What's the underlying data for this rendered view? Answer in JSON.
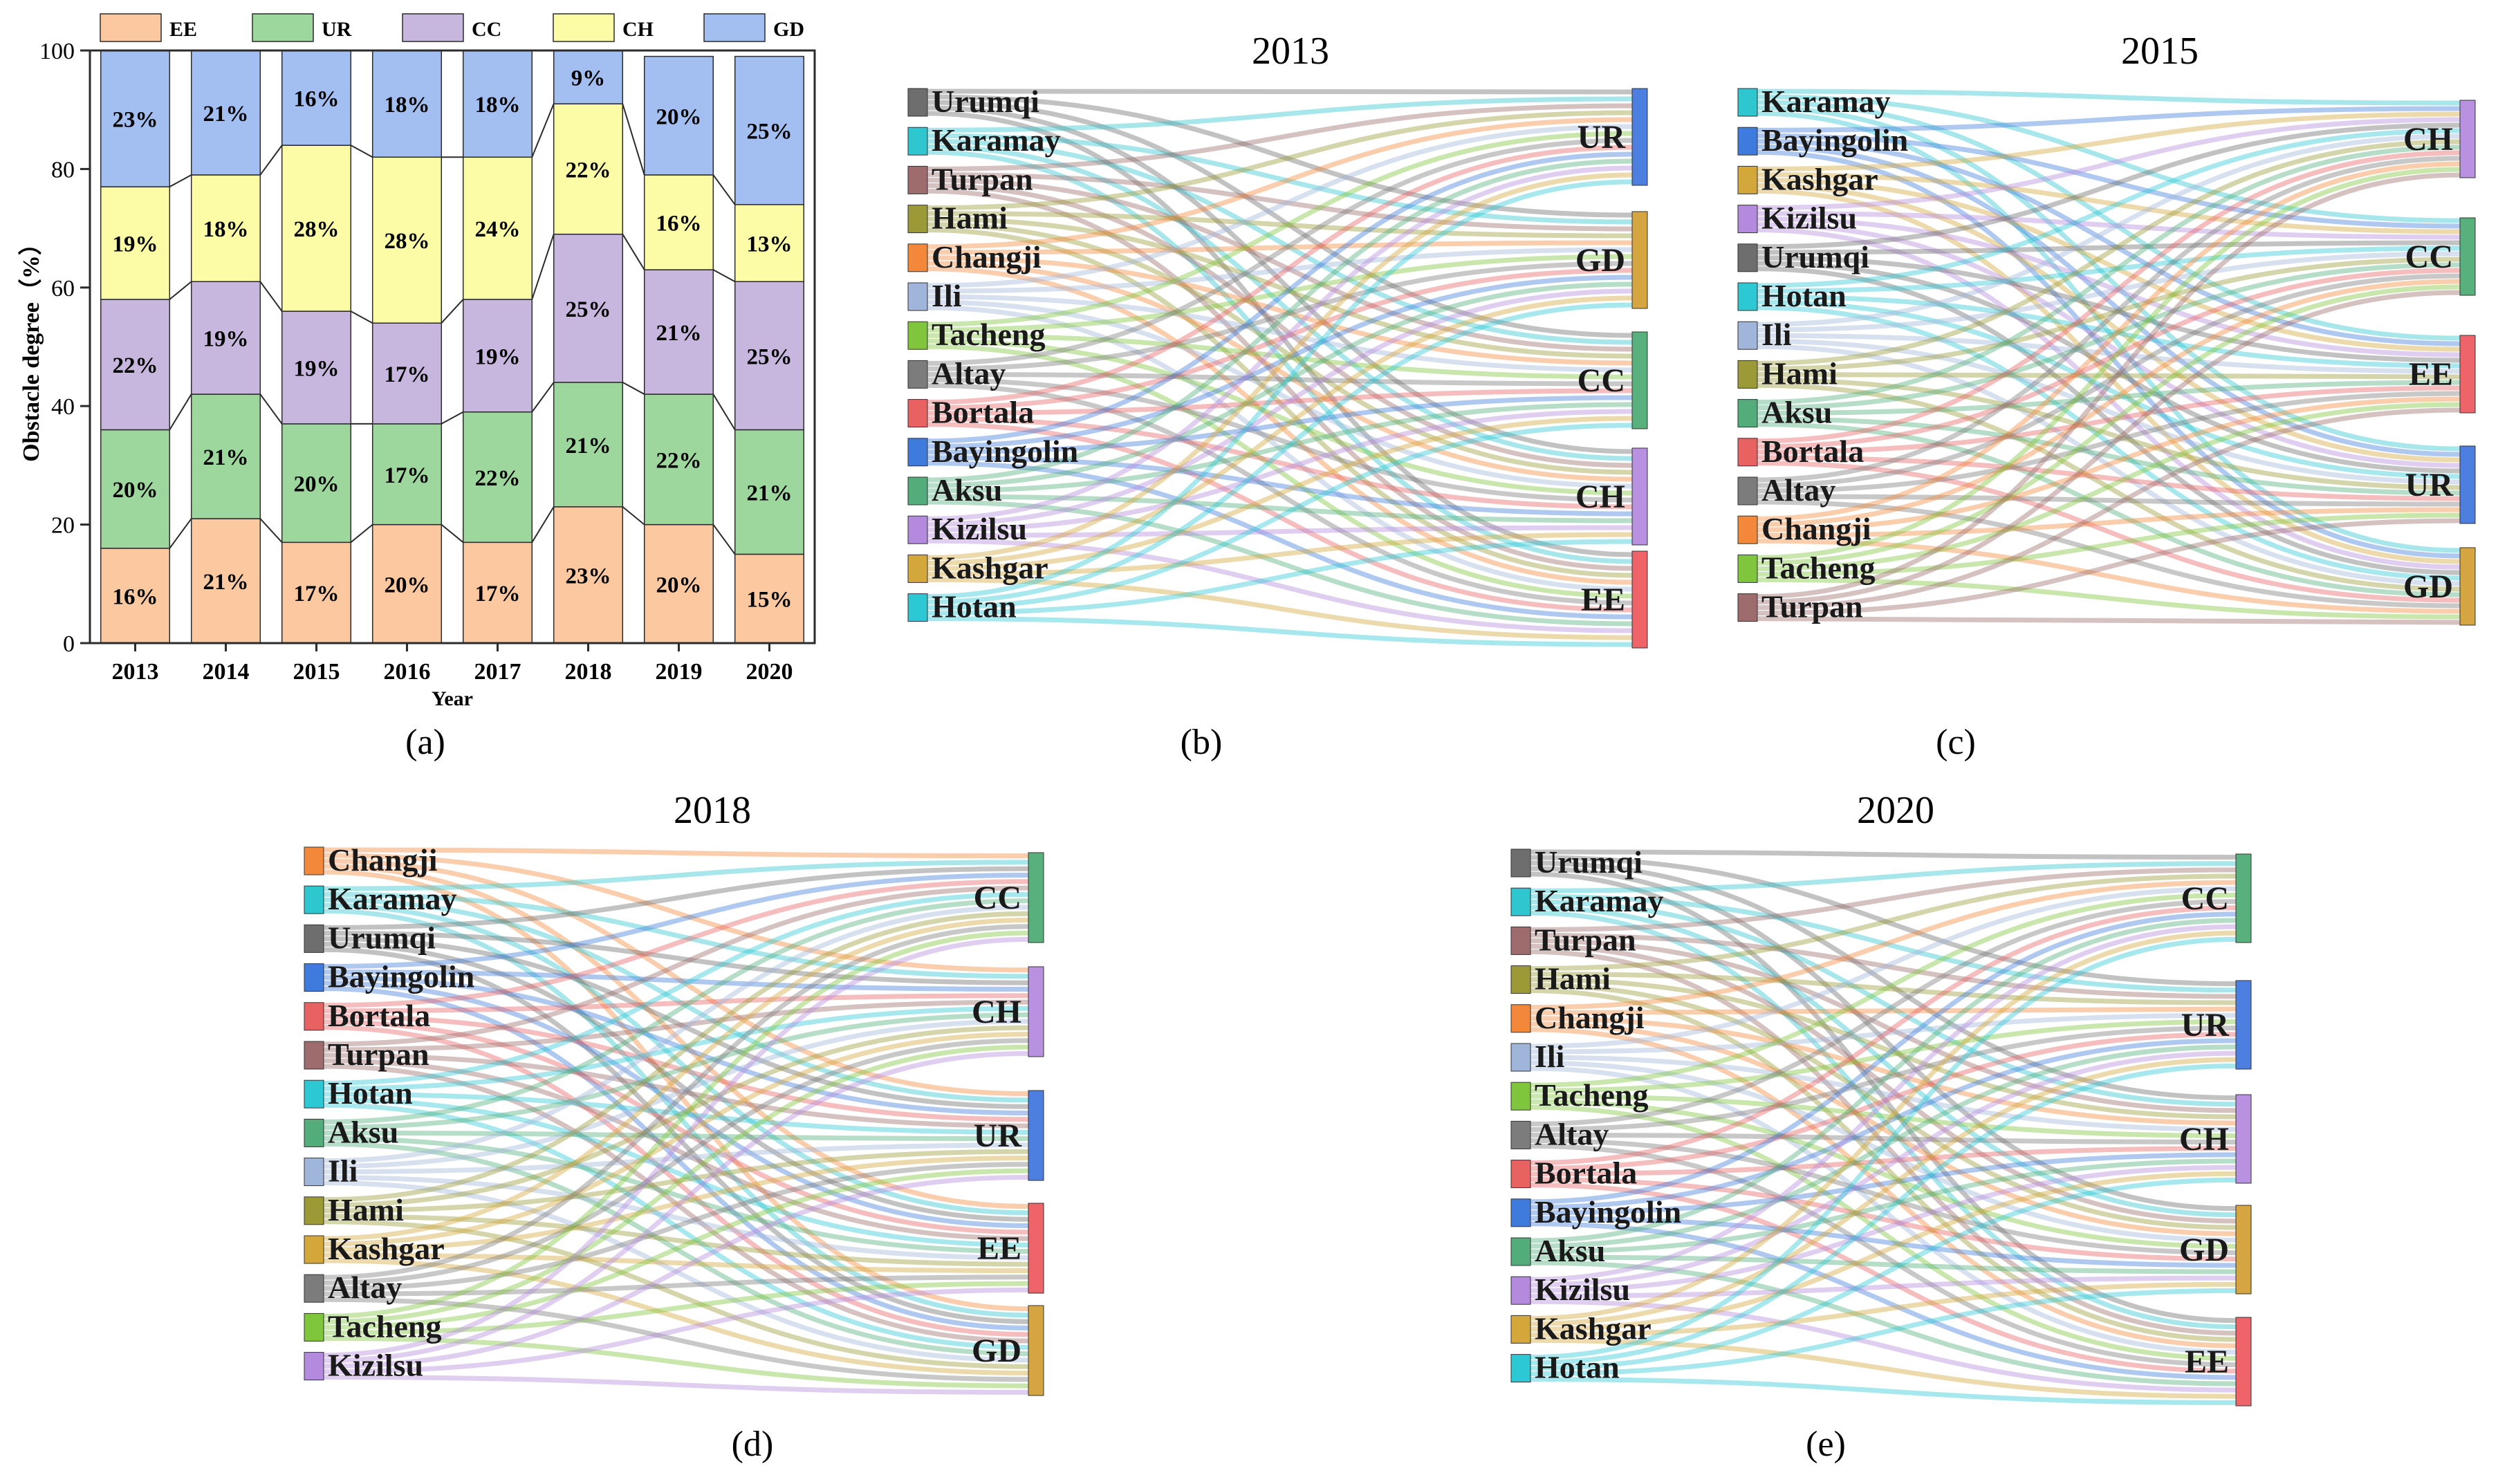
{
  "figure": {
    "panel_labels": [
      "(a)",
      "(b)",
      "(c)",
      "(d)",
      "(e)"
    ]
  },
  "colors": {
    "EE": "#FBC8A0",
    "UR": "#9DD79D",
    "CC": "#C7B6DD",
    "CH": "#FCFCA6",
    "GD": "#A3BEF0",
    "bar_stroke": "#2b2b2b",
    "sankey_dim": {
      "UR": "#4C7FE0",
      "GD": "#D5A541",
      "CC": "#58B07C",
      "CH": "#B892E0",
      "EE": "#EE6468"
    },
    "cities": {
      "Urumqi": "#6E6E6E",
      "Karamay": "#2EC6CF",
      "Turpan": "#9E6C6C",
      "Hami": "#9C9A36",
      "Changji": "#F4883A",
      "Ili": "#9FB5DA",
      "Tacheng": "#7FC63C",
      "Altay": "#7C7C7C",
      "Bortala": "#E86262",
      "Bayingolin": "#3F7BDC",
      "Aksu": "#52AD7A",
      "Kizilsu": "#B48ADE",
      "Kashgar": "#D4A73A",
      "Hotan": "#2CC8D4"
    }
  },
  "chart_data": [
    {
      "type": "bar",
      "stacked": true,
      "panel": "(a)",
      "categories": [
        "2013",
        "2014",
        "2015",
        "2016",
        "2017",
        "2018",
        "2019",
        "2020"
      ],
      "series": [
        {
          "name": "EE",
          "values": [
            16,
            21,
            17,
            20,
            17,
            23,
            20,
            15
          ],
          "labels": [
            "16%",
            "21%",
            "17%",
            "20%",
            "17%",
            "23%",
            "20%",
            "15%"
          ]
        },
        {
          "name": "UR",
          "values": [
            20,
            21,
            20,
            17,
            22,
            21,
            22,
            21
          ],
          "labels": [
            "20%",
            "21%",
            "20%",
            "17%",
            "22%",
            "21%",
            "22%",
            "21%"
          ]
        },
        {
          "name": "CC",
          "values": [
            22,
            19,
            19,
            17,
            19,
            25,
            21,
            25
          ],
          "labels": [
            "22%",
            "19%",
            "19%",
            "17%",
            "19%",
            "25%",
            "21%",
            "25%"
          ]
        },
        {
          "name": "CH",
          "values": [
            19,
            18,
            28,
            28,
            24,
            22,
            16,
            13
          ],
          "labels": [
            "19%",
            "18%",
            "28%",
            "28%",
            "24%",
            "22%",
            "16%",
            "13%"
          ]
        },
        {
          "name": "GD",
          "values": [
            23,
            21,
            16,
            18,
            18,
            9,
            20,
            25
          ],
          "labels": [
            "23%",
            "21%",
            "16%",
            "18%",
            "18%",
            "9%",
            "20%",
            "25%"
          ]
        }
      ],
      "legend": [
        "EE",
        "UR",
        "CC",
        "CH",
        "GD"
      ],
      "xlabel": "Year",
      "ylabel": "Obstacle degree（%）",
      "ylim": [
        0,
        100
      ],
      "yticks": [
        "0",
        "20",
        "40",
        "60",
        "80",
        "100"
      ]
    },
    {
      "type": "sankey",
      "panel": "(b)",
      "title": "2013",
      "sources": [
        "Urumqi",
        "Karamay",
        "Turpan",
        "Hami",
        "Changji",
        "Ili",
        "Tacheng",
        "Altay",
        "Bortala",
        "Bayingolin",
        "Aksu",
        "Kizilsu",
        "Kashgar",
        "Hotan"
      ],
      "targets": [
        "UR",
        "GD",
        "CC",
        "CH",
        "EE"
      ]
    },
    {
      "type": "sankey",
      "panel": "(c)",
      "title": "2015",
      "sources": [
        "Karamay",
        "Bayingolin",
        "Kashgar",
        "Kizilsu",
        "Urumqi",
        "Hotan",
        "Ili",
        "Hami",
        "Aksu",
        "Bortala",
        "Altay",
        "Changji",
        "Tacheng",
        "Turpan"
      ],
      "targets": [
        "CH",
        "CC",
        "EE",
        "UR",
        "GD"
      ]
    },
    {
      "type": "sankey",
      "panel": "(d)",
      "title": "2018",
      "sources": [
        "Changji",
        "Karamay",
        "Urumqi",
        "Bayingolin",
        "Bortala",
        "Turpan",
        "Hotan",
        "Aksu",
        "Ili",
        "Hami",
        "Kashgar",
        "Altay",
        "Tacheng",
        "Kizilsu"
      ],
      "targets": [
        "CC",
        "CH",
        "UR",
        "EE",
        "GD"
      ]
    },
    {
      "type": "sankey",
      "panel": "(e)",
      "title": "2020",
      "sources": [
        "Urumqi",
        "Karamay",
        "Turpan",
        "Hami",
        "Changji",
        "Ili",
        "Tacheng",
        "Altay",
        "Bortala",
        "Bayingolin",
        "Aksu",
        "Kizilsu",
        "Kashgar",
        "Hotan"
      ],
      "targets": [
        "CC",
        "UR",
        "CH",
        "GD",
        "EE"
      ]
    }
  ]
}
